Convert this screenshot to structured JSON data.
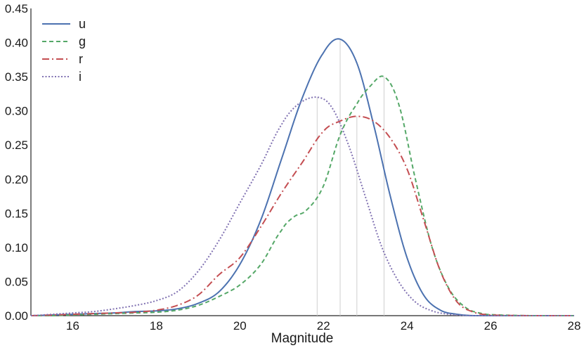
{
  "chart_data": {
    "type": "line",
    "xlabel": "Magnitude",
    "ylabel": "",
    "xlim": [
      15,
      28
    ],
    "ylim": [
      0,
      0.45
    ],
    "xticks": [
      "16",
      "18",
      "20",
      "22",
      "24",
      "26",
      "28"
    ],
    "yticks": [
      "0.00",
      "0.05",
      "0.10",
      "0.15",
      "0.20",
      "0.25",
      "0.30",
      "0.35",
      "0.40",
      "0.45"
    ],
    "grid": false,
    "legend": "top-left",
    "series": [
      {
        "name": "u",
        "color": "#4c72b0",
        "dash": "solid",
        "peak_x": 22.4,
        "x": [
          15.0,
          15.5,
          16.0,
          16.5,
          17.0,
          17.5,
          18.0,
          18.5,
          19.0,
          19.5,
          20.0,
          20.5,
          21.0,
          21.5,
          22.0,
          22.4,
          22.8,
          23.2,
          23.6,
          24.0,
          24.4,
          24.8,
          25.2,
          25.6,
          26.0,
          26.5,
          27.0,
          28.0
        ],
        "values": [
          0.0,
          0.001,
          0.002,
          0.003,
          0.004,
          0.006,
          0.007,
          0.01,
          0.018,
          0.035,
          0.075,
          0.14,
          0.23,
          0.32,
          0.385,
          0.405,
          0.37,
          0.28,
          0.175,
          0.085,
          0.03,
          0.008,
          0.002,
          0.0,
          0.0,
          0.0,
          0.0,
          0.0
        ]
      },
      {
        "name": "g",
        "color": "#55a868",
        "dash": "dashed",
        "peak_x": 23.45,
        "x": [
          15.0,
          15.5,
          16.0,
          16.5,
          17.0,
          17.5,
          18.0,
          18.5,
          19.0,
          19.5,
          20.0,
          20.5,
          21.0,
          21.3,
          21.6,
          22.0,
          22.4,
          22.8,
          23.1,
          23.45,
          23.8,
          24.2,
          24.6,
          25.0,
          25.4,
          25.8,
          26.2,
          27.0,
          28.0
        ],
        "values": [
          0.0,
          0.0,
          0.001,
          0.002,
          0.003,
          0.004,
          0.005,
          0.008,
          0.015,
          0.028,
          0.045,
          0.075,
          0.125,
          0.145,
          0.155,
          0.19,
          0.265,
          0.31,
          0.335,
          0.35,
          0.31,
          0.2,
          0.1,
          0.04,
          0.012,
          0.003,
          0.001,
          0.0,
          0.0
        ]
      },
      {
        "name": "r",
        "color": "#c44e52",
        "dash": "dashdot",
        "peak_x": 22.8,
        "x": [
          15.0,
          15.5,
          16.0,
          16.5,
          17.0,
          17.5,
          18.0,
          18.5,
          19.0,
          19.5,
          20.0,
          20.5,
          21.0,
          21.5,
          22.0,
          22.4,
          22.8,
          23.2,
          23.6,
          24.0,
          24.4,
          24.8,
          25.2,
          25.6,
          26.0,
          27.0,
          28.0
        ],
        "values": [
          0.0,
          0.001,
          0.002,
          0.003,
          0.004,
          0.005,
          0.008,
          0.015,
          0.03,
          0.06,
          0.085,
          0.13,
          0.18,
          0.225,
          0.27,
          0.285,
          0.292,
          0.285,
          0.26,
          0.215,
          0.14,
          0.065,
          0.02,
          0.005,
          0.001,
          0.0,
          0.0
        ]
      },
      {
        "name": "i",
        "color": "#8172b2",
        "dash": "dotted",
        "peak_x": 21.85,
        "x": [
          15.0,
          15.5,
          16.0,
          16.5,
          17.0,
          17.5,
          18.0,
          18.5,
          19.0,
          19.5,
          20.0,
          20.5,
          21.0,
          21.4,
          21.85,
          22.2,
          22.6,
          23.0,
          23.4,
          23.8,
          24.2,
          24.6,
          25.0,
          25.5,
          26.0,
          27.0,
          28.0
        ],
        "values": [
          0.0,
          0.002,
          0.004,
          0.006,
          0.01,
          0.015,
          0.022,
          0.035,
          0.065,
          0.11,
          0.165,
          0.22,
          0.28,
          0.31,
          0.32,
          0.305,
          0.25,
          0.175,
          0.1,
          0.05,
          0.02,
          0.007,
          0.002,
          0.0,
          0.0,
          0.0,
          0.0
        ]
      }
    ]
  }
}
